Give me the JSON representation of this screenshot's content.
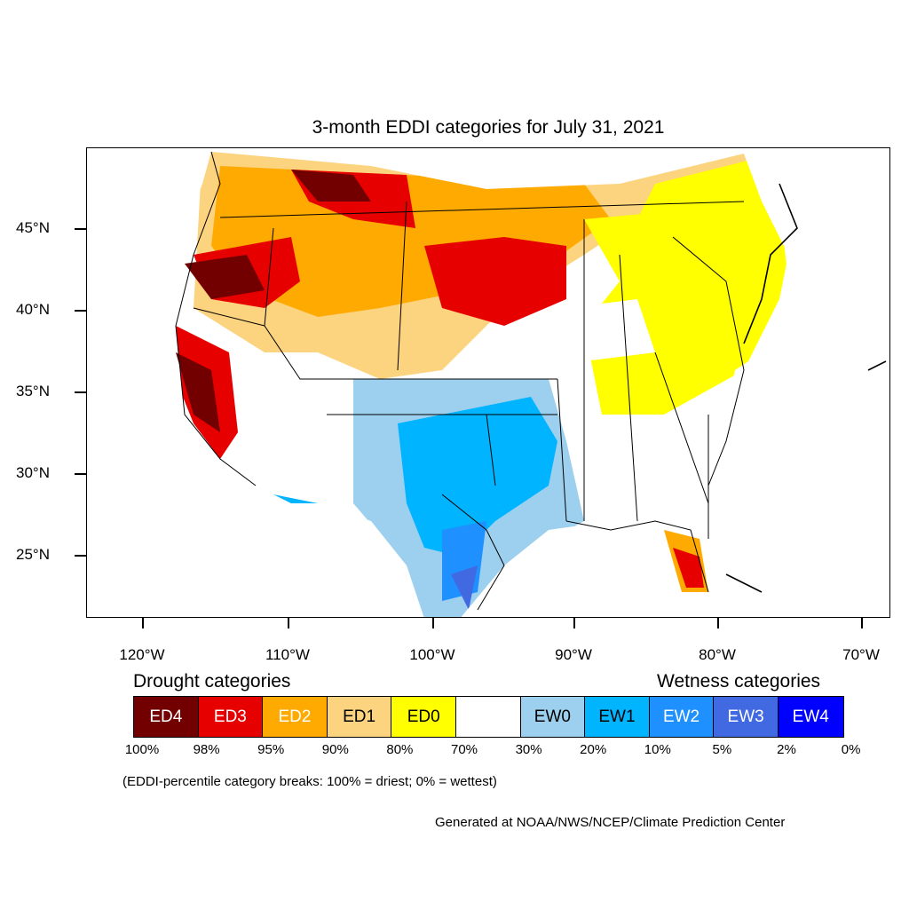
{
  "title": "3-month EDDI categories for July 31, 2021",
  "lat_ticks": [
    "45°N",
    "40°N",
    "35°N",
    "30°N",
    "25°N"
  ],
  "lon_ticks": [
    "120°W",
    "110°W",
    "100°W",
    "90°W",
    "80°W",
    "70°W"
  ],
  "legend": {
    "drought_label": "Drought categories",
    "wetness_label": "Wetness categories",
    "categories": [
      {
        "label": "ED4",
        "color": "#730000",
        "text_color": "#ffffff"
      },
      {
        "label": "ED3",
        "color": "#e60000",
        "text_color": "#ffffff"
      },
      {
        "label": "ED2",
        "color": "#ffaa00",
        "text_color": "#ffffff"
      },
      {
        "label": "ED1",
        "color": "#fcd37f",
        "text_color": "#000000"
      },
      {
        "label": "ED0",
        "color": "#ffff00",
        "text_color": "#000000"
      },
      {
        "label": "",
        "color": "#ffffff",
        "text_color": "#000000"
      },
      {
        "label": "EW0",
        "color": "#9dd0ee",
        "text_color": "#000000"
      },
      {
        "label": "EW1",
        "color": "#00b4ff",
        "text_color": "#000000"
      },
      {
        "label": "EW2",
        "color": "#1e90ff",
        "text_color": "#ffffff"
      },
      {
        "label": "EW3",
        "color": "#4169e1",
        "text_color": "#ffffff"
      },
      {
        "label": "EW4",
        "color": "#0000ff",
        "text_color": "#ffffff"
      }
    ],
    "breaks": [
      "100%",
      "98%",
      "95%",
      "90%",
      "80%",
      "70%",
      "30%",
      "20%",
      "10%",
      "5%",
      "2%",
      "0%"
    ]
  },
  "note": "(EDDI-percentile category breaks: 100% = driest; 0% = wettest)",
  "credit": "Generated at NOAA/NWS/NCEP/Climate Prediction Center"
}
